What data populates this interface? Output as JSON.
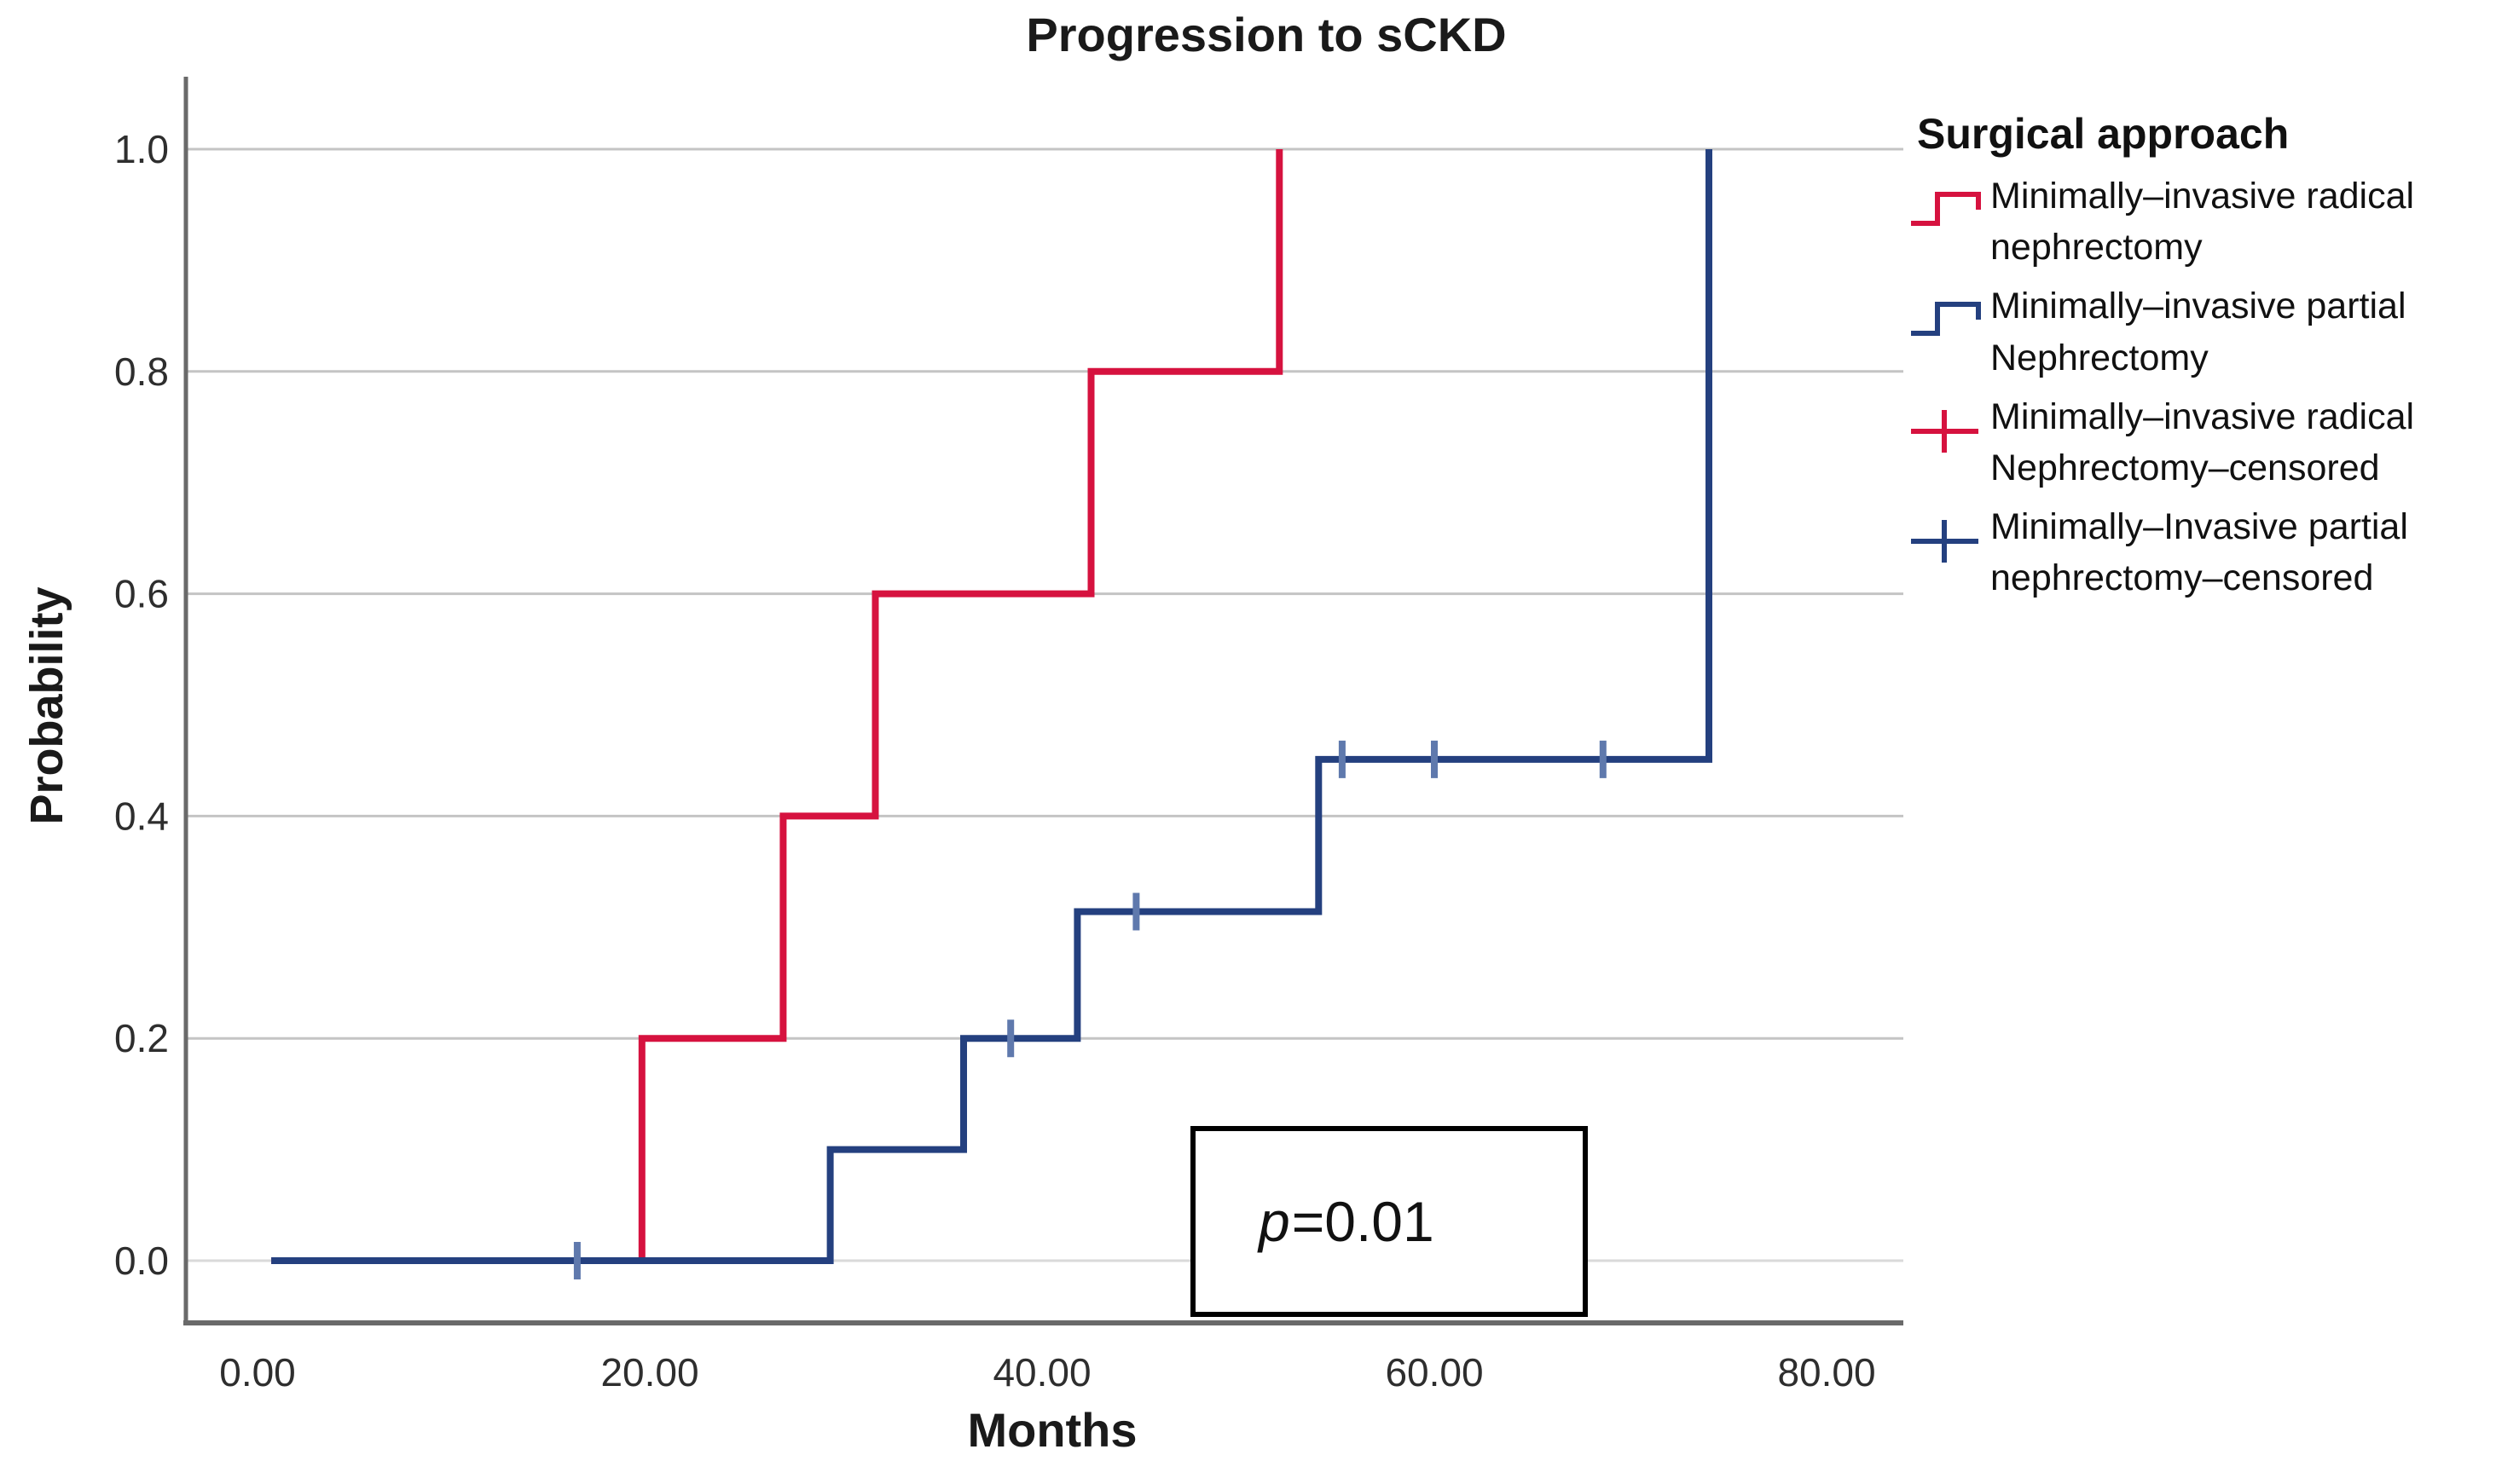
{
  "title": "Progression to sCKD",
  "axes": {
    "x": {
      "label": "Months"
    },
    "y": {
      "label": "Probability"
    }
  },
  "annotation": {
    "p": "p",
    "value": "=0.01"
  },
  "colors": {
    "red": "#D6123F",
    "blue": "#24407F",
    "blue_censor": "#5F79AD",
    "gridline": "#C4C4C4",
    "gridline_zero": "#DADADA",
    "axis": "#6A6A6A"
  },
  "legend": {
    "title": "Surgical approach",
    "items": [
      {
        "line1": "Minimally–invasive radical",
        "line2": "nephrectomy",
        "marker": "step-line",
        "color": "#D6123F"
      },
      {
        "line1": "Minimally–invasive partial",
        "line2": "Nephrectomy",
        "marker": "step-line",
        "color": "#24407F"
      },
      {
        "line1": "Minimally–invasive radical",
        "line2": "Nephrectomy–censored",
        "marker": "plus-censor",
        "color": "#D6123F"
      },
      {
        "line1": "Minimally–Invasive partial",
        "line2": "nephrectomy–censored",
        "marker": "plus-censor",
        "color": "#24407F"
      }
    ]
  },
  "chart_data": {
    "type": "line",
    "subtype": "kaplan-meier-step",
    "title": "Progression to sCKD",
    "xlabel": "Months",
    "ylabel": "Probability",
    "xlim": [
      0,
      80
    ],
    "ylim": [
      0,
      1.0
    ],
    "x_ticks": [
      0,
      20,
      40,
      60,
      80
    ],
    "x_tick_labels": [
      "0.00",
      "20.00",
      "40.00",
      "60.00",
      "80.00"
    ],
    "y_ticks": [
      0.0,
      0.2,
      0.4,
      0.6,
      0.8,
      1.0
    ],
    "y_tick_labels": [
      "0.0",
      "0.2",
      "0.4",
      "0.6",
      "0.8",
      "1.0"
    ],
    "grid": "horizontal",
    "legend_position": "right",
    "annotation": "p=0.01",
    "series": [
      {
        "name": "Minimally–invasive radical nephrectomy",
        "color": "#D6123F",
        "censor_color": "#E0607F",
        "steps": [
          [
            0.7,
            0.0
          ],
          [
            19.6,
            0.2
          ],
          [
            26.8,
            0.4
          ],
          [
            31.5,
            0.6
          ],
          [
            42.5,
            0.8
          ],
          [
            52.1,
            1.0
          ]
        ],
        "censored": []
      },
      {
        "name": "Minimally–invasive partial Nephrectomy",
        "color": "#24407F",
        "censor_color": "#5F79AD",
        "steps": [
          [
            0.7,
            0.0
          ],
          [
            29.2,
            0.1
          ],
          [
            36.0,
            0.2
          ],
          [
            41.8,
            0.314
          ],
          [
            54.1,
            0.451
          ],
          [
            74.0,
            1.0
          ]
        ],
        "censored": [
          [
            16.3,
            0.0
          ],
          [
            38.4,
            0.2
          ],
          [
            44.8,
            0.314
          ],
          [
            55.3,
            0.451
          ],
          [
            60.0,
            0.451
          ],
          [
            68.6,
            0.451
          ]
        ]
      }
    ]
  }
}
